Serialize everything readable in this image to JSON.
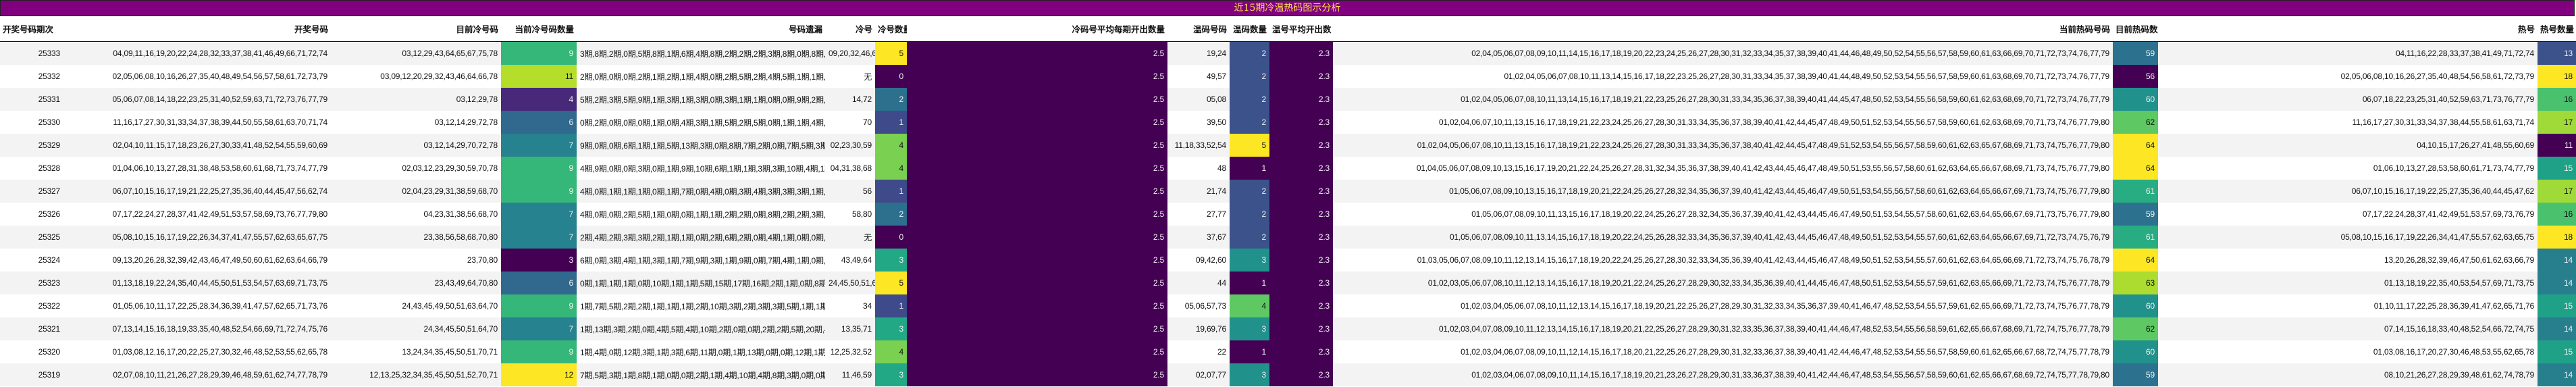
{
  "title": "近15期冷温热码图示分析",
  "colors": {
    "title_bg": "#800080",
    "title_text": "#ffe24a",
    "viridis": {
      "v0": "#440154",
      "v1": "#482878",
      "v2": "#3e4989",
      "v3": "#31688e",
      "v4": "#26828e",
      "v5": "#1f9e89",
      "v6": "#35b779",
      "v7": "#6ece58",
      "v8": "#b5de2b",
      "v9": "#fde725"
    }
  },
  "headers": {
    "period": "开奖号码期次",
    "draw": "开奖号码",
    "cold_numbers": "目前冷号码",
    "cold_count": "当前冷号码数量",
    "omission": "号码遗漏",
    "cold": "冷号",
    "cold_qty": "冷号数量",
    "cold_avg": "冷码号平均每期开出数量",
    "warm_numbers": "温码号码",
    "warm_qty": "温码数量",
    "warm_avg": "温号平均开出数",
    "hot_numbers": "当前热码号码",
    "hot_count": "目前热码数量",
    "hot": "热号",
    "hot_qty": "热号数量"
  },
  "rows": [
    {
      "period": "25333",
      "draw": "04,09,11,16,19,20,22,24,28,32,33,37,38,41,46,49,66,71,72,74",
      "cold_numbers": "03,12,29,43,64,65,67,75,78",
      "cold_count": "9",
      "omission": "3期,8期,2期,0期,5期,8期,1期,6期,4期,8期,2期,2期,2期,3期,8期,0期,8期,1期,0期,2期",
      "cold": "09,20,32,46,66",
      "cold_qty": "5",
      "cold_avg": "2.5",
      "warm_numbers": "19,24",
      "warm_qty": "2",
      "warm_avg": "2.3",
      "hot_numbers": "02,04,05,06,07,08,09,10,11,14,15,16,17,18,19,20,22,23,24,25,26,27,28,30,31,32,33,34,35,37,38,39,40,41,44,46,48,49,50,52,54,55,56,57,58,59,60,61,63,66,69,70,71,72,73,74,76,77,79",
      "hot_count": "59",
      "hot": "04,11,16,22,28,33,37,38,41,49,71,72,74",
      "hot_qty": "13"
    },
    {
      "period": "25332",
      "draw": "02,05,06,08,10,16,26,27,35,40,48,49,54,56,57,58,61,72,73,79",
      "cold_numbers": "03,09,12,20,29,32,43,46,64,66,78",
      "cold_count": "11",
      "omission": "2期,0期,0期,0期,2期,1期,2期,1期,4期,0期,2期,5期,2期,4期,5期,1期,1期,0期,0期,0期",
      "cold": "无",
      "cold_qty": "0",
      "cold_avg": "2.5",
      "warm_numbers": "49,57",
      "warm_qty": "2",
      "warm_avg": "2.3",
      "hot_numbers": "01,02,04,05,06,07,08,10,11,13,14,15,16,17,18,22,23,25,26,27,28,30,31,33,34,35,37,38,39,40,41,44,48,49,50,52,53,54,55,56,57,58,59,60,61,63,68,69,70,71,72,73,74,76,77,79",
      "hot_count": "56",
      "hot": "02,05,06,08,10,16,26,27,35,40,48,54,56,58,61,72,73,79",
      "hot_qty": "18"
    },
    {
      "period": "25331",
      "draw": "05,06,07,08,14,18,22,23,25,31,40,52,59,63,71,72,73,76,77,79",
      "cold_numbers": "03,12,29,78",
      "cold_count": "4",
      "omission": "5期,2期,3期,5期,9期,1期,3期,1期,3期,0期,3期,1期,1期,0期,0期,9期,2期,4期,2期,2期",
      "cold": "14,72",
      "cold_qty": "2",
      "cold_avg": "2.5",
      "warm_numbers": "05,08",
      "warm_qty": "2",
      "warm_avg": "2.3",
      "hot_numbers": "01,02,04,05,06,07,08,10,11,13,14,15,16,17,18,19,21,22,23,25,26,27,28,30,31,33,34,35,36,37,38,39,40,41,44,45,47,48,50,52,53,54,55,56,58,59,60,61,62,63,68,69,70,71,72,73,74,76,77,79",
      "hot_count": "60",
      "hot": "06,07,18,22,23,25,31,40,52,59,63,71,73,76,77,79",
      "hot_qty": "16"
    },
    {
      "period": "25330",
      "draw": "11,16,17,27,30,31,33,34,37,38,39,44,50,55,58,61,63,70,71,74",
      "cold_numbers": "03,12,14,29,72,78",
      "cold_count": "6",
      "omission": "0期,2期,0期,0期,0期,1期,0期,4期,3期,1期,5期,2期,5期,0期,1期,1期,4期,18期,1期,1期",
      "cold": "70",
      "cold_qty": "1",
      "cold_avg": "2.5",
      "warm_numbers": "39,50",
      "warm_qty": "2",
      "warm_avg": "2.3",
      "hot_numbers": "01,02,04,06,07,10,11,13,15,16,17,18,19,21,22,23,24,25,26,27,28,30,31,33,34,35,36,37,38,39,40,41,42,44,45,47,48,49,50,51,52,53,54,55,56,57,58,59,60,61,62,63,68,69,70,71,73,74,76,77,79,80",
      "hot_count": "62",
      "hot": "11,16,17,27,30,31,33,34,37,38,44,55,58,61,63,71,74",
      "hot_qty": "17"
    },
    {
      "period": "25329",
      "draw": "02,04,10,11,15,17,18,23,26,27,30,33,41,48,52,54,55,59,60,69",
      "cold_numbers": "03,12,14,29,70,72,78",
      "cold_count": "7",
      "omission": "9期,0期,0期,6期,1期,1期,5期,13期,3期,0期,8期,7期,2期,0期,7期,5期,3期,9期,0期,2期",
      "cold": "02,23,30,59",
      "cold_qty": "4",
      "cold_avg": "2.5",
      "warm_numbers": "11,18,33,52,54",
      "warm_qty": "5",
      "warm_avg": "2.3",
      "hot_numbers": "01,02,04,05,06,07,08,10,11,13,15,16,17,18,19,21,22,23,24,25,26,27,28,30,31,33,34,35,36,37,38,40,41,42,44,45,47,48,49,51,52,53,54,55,56,57,58,59,60,61,62,63,65,67,68,69,71,73,74,75,76,77,79,80",
      "hot_count": "64",
      "hot": "04,10,15,17,26,27,41,48,55,60,69",
      "hot_qty": "11"
    },
    {
      "period": "25328",
      "draw": "01,04,06,10,13,27,28,31,38,48,53,58,60,61,68,71,73,74,77,79",
      "cold_numbers": "02,03,12,23,29,30,59,70,78",
      "cold_count": "9",
      "omission": "4期,9期,0期,0期,3期,0期,1期,9期,10期,6期,1期,1期,3期,3期,10期,4期,1期,0期,1期,1期",
      "cold": "04,31,38,68",
      "cold_qty": "4",
      "cold_avg": "2.5",
      "warm_numbers": "48",
      "warm_qty": "1",
      "warm_avg": "2.3",
      "hot_numbers": "01,04,05,06,07,08,09,10,13,15,16,17,19,20,21,22,24,25,26,27,28,31,32,34,35,36,37,38,39,40,41,42,43,44,45,46,47,48,49,50,51,53,55,56,57,58,60,61,62,63,64,65,66,67,68,69,71,73,74,75,76,77,79,80",
      "hot_count": "64",
      "hot": "01,06,10,13,27,28,53,58,60,61,71,73,74,77,79",
      "hot_qty": "15"
    },
    {
      "period": "25327",
      "draw": "06,07,10,15,16,17,19,21,22,25,27,35,36,40,44,45,47,56,62,74",
      "cold_numbers": "02,04,23,29,31,38,59,68,70",
      "cold_count": "9",
      "omission": "4期,0期,1期,1期,1期,0期,1期,7期,0期,4期,0期,3期,4期,3期,3期,3期,1期,9期,1期,5期",
      "cold": "56",
      "cold_qty": "1",
      "cold_avg": "2.5",
      "warm_numbers": "21,74",
      "warm_qty": "2",
      "warm_avg": "2.3",
      "hot_numbers": "01,05,06,07,08,09,10,13,15,16,17,18,19,20,21,22,24,25,26,27,28,32,34,35,36,37,39,40,41,42,43,44,45,46,47,49,50,51,53,54,55,56,57,58,60,61,62,63,64,65,66,67,69,71,73,74,75,76,77,79,80",
      "hot_count": "61",
      "hot": "06,07,10,15,16,17,19,22,25,27,35,36,40,44,45,47,62",
      "hot_qty": "17"
    },
    {
      "period": "25326",
      "draw": "07,17,22,24,27,28,37,41,42,49,51,53,57,58,69,73,76,77,79,80",
      "cold_numbers": "04,23,31,38,56,68,70",
      "cold_count": "7",
      "omission": "4期,0期,0期,2期,5期,1期,0期,0期,1期,1期,2期,2期,0期,8期,2期,2期,3期,6期,1期,10期",
      "cold": "58,80",
      "cold_qty": "2",
      "cold_avg": "2.5",
      "warm_numbers": "27,77",
      "warm_qty": "2",
      "warm_avg": "2.3",
      "hot_numbers": "01,05,06,07,08,09,10,11,13,15,16,17,18,19,20,22,24,25,26,27,28,32,34,35,36,37,39,40,41,42,43,44,45,46,47,49,50,51,53,54,55,57,58,60,61,62,63,64,65,66,67,69,71,73,75,76,77,79,80",
      "hot_count": "59",
      "hot": "07,17,22,24,28,37,41,42,49,51,53,57,69,73,76,79",
      "hot_qty": "16"
    },
    {
      "period": "25325",
      "draw": "05,08,10,15,16,17,19,22,26,34,37,41,47,55,57,62,63,65,67,75",
      "cold_numbers": "23,38,56,58,68,70,80",
      "cold_count": "7",
      "omission": "2期,4期,2期,3期,3期,2期,1期,1期,0期,2期,6期,2期,0期,4期,1期,0期,0期,2期,7期,1期",
      "cold": "无",
      "cold_qty": "0",
      "cold_avg": "2.5",
      "warm_numbers": "37,67",
      "warm_qty": "2",
      "warm_avg": "2.3",
      "hot_numbers": "01,05,06,07,08,09,10,11,13,14,15,16,17,18,19,20,22,24,25,26,28,32,33,34,35,36,37,39,40,41,42,43,44,45,46,47,48,49,50,51,52,53,54,55,57,60,61,62,63,64,65,66,67,69,71,72,73,74,75,76,79",
      "hot_count": "61",
      "hot": "05,08,10,15,16,17,19,22,26,34,41,47,55,57,62,63,65,75",
      "hot_qty": "18"
    },
    {
      "period": "25324",
      "draw": "09,13,20,26,28,32,39,42,43,46,47,49,50,60,61,62,63,64,66,79",
      "cold_numbers": "23,70,80",
      "cold_count": "3",
      "omission": "6期,0期,3期,4期,1期,3期,1期,7期,9期,3期,1期,9期,0期,7期,4期,1期,0期,10期,2期,4期",
      "cold": "43,49,64",
      "cold_qty": "3",
      "cold_avg": "2.5",
      "warm_numbers": "09,42,60",
      "warm_qty": "3",
      "warm_avg": "2.3",
      "hot_numbers": "01,03,05,06,07,08,09,10,11,12,13,14,15,16,17,18,19,20,22,24,25,26,27,28,30,32,33,34,35,36,39,40,41,42,43,44,45,46,47,48,49,50,51,52,53,54,55,57,60,61,62,63,64,65,66,69,71,72,73,74,75,76,78,79",
      "hot_count": "64",
      "hot": "13,20,26,28,32,39,46,47,50,61,62,63,66,79",
      "hot_qty": "14"
    },
    {
      "period": "25323",
      "draw": "01,13,18,19,22,24,35,40,44,45,50,51,53,54,57,63,69,71,73,75",
      "cold_numbers": "23,43,49,64,70,80",
      "cold_count": "6",
      "omission": "0期,1期,1期,1期,0期,10期,1期,1期,5期,15期,17期,16期,2期,1期,0期,8期,1期,0期,0期,1期",
      "cold": "24,45,50,51,63",
      "cold_qty": "5",
      "cold_avg": "2.5",
      "warm_numbers": "44",
      "warm_qty": "1",
      "warm_avg": "2.3",
      "hot_numbers": "01,02,03,05,06,07,08,10,11,12,13,14,15,16,17,18,19,20,21,22,24,25,26,27,28,29,30,32,33,34,35,36,39,40,41,44,45,46,47,48,50,51,52,53,54,55,57,59,61,62,63,65,66,69,71,72,73,74,75,76,77,78,79",
      "hot_count": "63",
      "hot": "01,13,18,19,22,35,40,53,54,57,69,71,73,75",
      "hot_qty": "14"
    },
    {
      "period": "25322",
      "draw": "01,05,06,10,11,17,22,25,28,34,36,39,41,47,57,62,65,71,73,76",
      "cold_numbers": "24,43,45,49,50,51,63,64,70",
      "cold_count": "9",
      "omission": "1期,7期,5期,2期,2期,1期,1期,1期,2期,10期,3期,2期,3期,3期,5期,1期,1期,0期,7期,0期",
      "cold": "34",
      "cold_qty": "1",
      "cold_avg": "2.5",
      "warm_numbers": "05,06,57,73",
      "warm_qty": "4",
      "warm_avg": "2.3",
      "hot_numbers": "01,02,03,04,05,06,07,08,10,11,12,13,14,15,16,17,18,19,20,21,22,25,26,27,28,29,30,31,32,33,34,35,36,37,39,40,41,46,47,48,52,53,54,55,57,59,61,62,65,66,69,71,72,73,74,75,76,77,78,79",
      "hot_count": "60",
      "hot": "01,10,11,17,22,25,28,36,39,41,47,62,65,71,76",
      "hot_qty": "15"
    },
    {
      "period": "25321",
      "draw": "07,13,14,15,16,18,19,33,35,40,48,52,54,66,69,71,72,74,75,76",
      "cold_numbers": "24,34,45,50,51,64,70",
      "cold_count": "7",
      "omission": "1期,13期,3期,2期,0期,4期,5期,4期,10期,2期,0期,0期,2期,2期,5期,20期,4期,1期,2期,6期",
      "cold": "13,35,71",
      "cold_qty": "3",
      "cold_avg": "2.5",
      "warm_numbers": "19,69,76",
      "warm_qty": "3",
      "warm_avg": "2.3",
      "hot_numbers": "01,02,03,04,07,08,09,10,11,12,13,14,15,16,17,18,19,20,21,22,25,26,27,28,29,30,31,32,33,35,36,37,38,39,40,41,44,46,47,48,52,53,54,55,56,58,59,61,62,65,66,67,68,69,71,72,74,75,76,77,78,79",
      "hot_count": "62",
      "hot": "07,14,15,16,18,33,40,48,52,54,66,72,74,75",
      "hot_qty": "14"
    },
    {
      "period": "25320",
      "draw": "01,03,08,12,16,17,20,22,25,27,30,32,46,48,52,53,55,62,65,78",
      "cold_numbers": "13,24,34,35,45,50,51,70,71",
      "cold_count": "9",
      "omission": "1期,4期,0期,12期,3期,1期,3期,6期,11期,0期,1期,13期,0期,0期,12期,1期,2期,0期,3期,0期",
      "cold": "12,25,32,52",
      "cold_qty": "4",
      "cold_avg": "2.5",
      "warm_numbers": "22",
      "warm_qty": "1",
      "warm_avg": "2.3",
      "hot_numbers": "01,02,03,04,06,07,08,09,10,11,12,14,15,16,17,18,20,21,22,25,26,27,28,29,30,31,32,33,36,37,38,39,40,41,42,44,46,47,48,52,53,54,55,56,57,58,59,60,61,62,65,66,67,68,72,74,75,77,78,79",
      "hot_count": "60",
      "hot": "01,03,08,16,17,20,27,30,46,48,53,55,62,65,78",
      "hot_qty": "15"
    },
    {
      "period": "25319",
      "draw": "02,07,08,10,11,21,26,27,28,29,39,46,48,59,61,62,74,77,78,79",
      "cold_numbers": "12,13,25,32,34,35,45,50,51,52,70,71",
      "cold_count": "12",
      "omission": "7期,5期,3期,1期,8期,1期,0期,0期,2期,1期,4期,10期,4期,8期,3期,0期,0期,7期,0期,1期",
      "cold": "11,46,59",
      "cold_qty": "3",
      "cold_avg": "2.5",
      "warm_numbers": "02,07,77",
      "warm_qty": "3",
      "warm_avg": "2.3",
      "hot_numbers": "01,02,03,04,06,07,08,09,10,11,14,15,16,17,18,19,20,21,23,26,27,28,29,30,31,33,36,37,38,39,40,41,42,44,46,47,48,53,54,55,56,57,58,59,60,61,62,65,66,67,68,69,72,74,75,77,78,79,80",
      "hot_count": "59",
      "hot": "08,10,21,26,27,28,29,39,48,61,62,74,78,79",
      "hot_qty": "14"
    }
  ],
  "cell_colors": {
    "cold_count": [
      "#35b779",
      "#b5de2b",
      "#482878",
      "#31688e",
      "#26828e",
      "#35b779",
      "#35b779",
      "#26828e",
      "#26828e",
      "#440154",
      "#31688e",
      "#35b779",
      "#26828e",
      "#35b779",
      "#fde725"
    ],
    "cold_qty": [
      "#fde725",
      "#440154",
      "#2d708e",
      "#3e4a89",
      "#7ad151",
      "#7ad151",
      "#3e4a89",
      "#2d708e",
      "#440154",
      "#22a884",
      "#fde725",
      "#3e4a89",
      "#22a884",
      "#7ad151",
      "#22a884"
    ],
    "cold_avg": [
      "#440154",
      "#440154",
      "#440154",
      "#440154",
      "#440154",
      "#440154",
      "#440154",
      "#440154",
      "#440154",
      "#440154",
      "#440154",
      "#440154",
      "#440154",
      "#440154",
      "#440154"
    ],
    "warm_qty": [
      "#3b528b",
      "#3b528b",
      "#3b528b",
      "#3b528b",
      "#fde725",
      "#440154",
      "#3b528b",
      "#3b528b",
      "#3b528b",
      "#21918c",
      "#440154",
      "#5ec962",
      "#21918c",
      "#440154",
      "#21918c"
    ],
    "warm_avg": [
      "#440154",
      "#440154",
      "#440154",
      "#440154",
      "#440154",
      "#440154",
      "#440154",
      "#440154",
      "#440154",
      "#440154",
      "#440154",
      "#440154",
      "#440154",
      "#440154",
      "#440154"
    ],
    "hot_count": [
      "#2c728e",
      "#440154",
      "#21918c",
      "#5ec962",
      "#fde725",
      "#fde725",
      "#27ad81",
      "#2c728e",
      "#27ad81",
      "#fde725",
      "#addc30",
      "#21918c",
      "#5ec962",
      "#21918c",
      "#2c728e"
    ],
    "hot_qty": [
      "#3b528b",
      "#fde725",
      "#4ac16d",
      "#a0da39",
      "#440154",
      "#1fa187",
      "#a0da39",
      "#4ac16d",
      "#fde725",
      "#277f8e",
      "#277f8e",
      "#1fa187",
      "#277f8e",
      "#1fa187",
      "#277f8e"
    ]
  }
}
